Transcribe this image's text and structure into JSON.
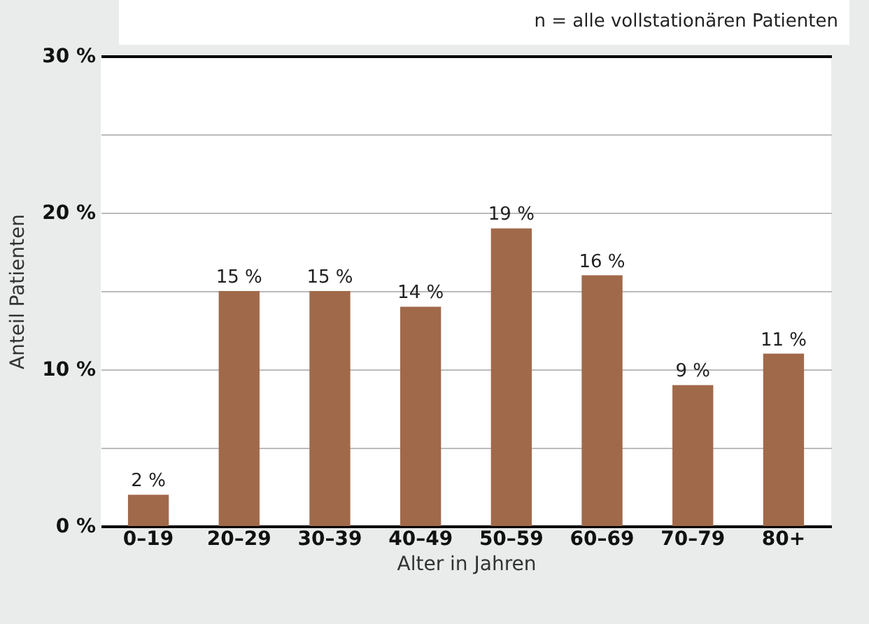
{
  "chart_data": {
    "type": "bar",
    "annotations": [
      "n = alle vollstationären Patienten"
    ],
    "xlabel": "Alter in Jahren",
    "ylabel": "Anteil Patienten",
    "categories": [
      "0–19",
      "20–29",
      "30–39",
      "40–49",
      "50–59",
      "60–69",
      "70–79",
      "80+"
    ],
    "values": [
      2,
      15,
      15,
      14,
      19,
      16,
      9,
      11
    ],
    "value_labels": [
      "2 %",
      "15 %",
      "15 %",
      "14 %",
      "19 %",
      "16 %",
      "9 %",
      "11 %"
    ],
    "color": "#a0694a",
    "ylim": [
      0,
      30
    ],
    "yticks": [
      {
        "value": 0,
        "label": "0 %"
      },
      {
        "value": 5,
        "label": null
      },
      {
        "value": 10,
        "label": "10 %"
      },
      {
        "value": 15,
        "label": null
      },
      {
        "value": 20,
        "label": "20 %"
      },
      {
        "value": 25,
        "label": null
      },
      {
        "value": 30,
        "label": "30 %"
      }
    ],
    "grid": "y"
  }
}
